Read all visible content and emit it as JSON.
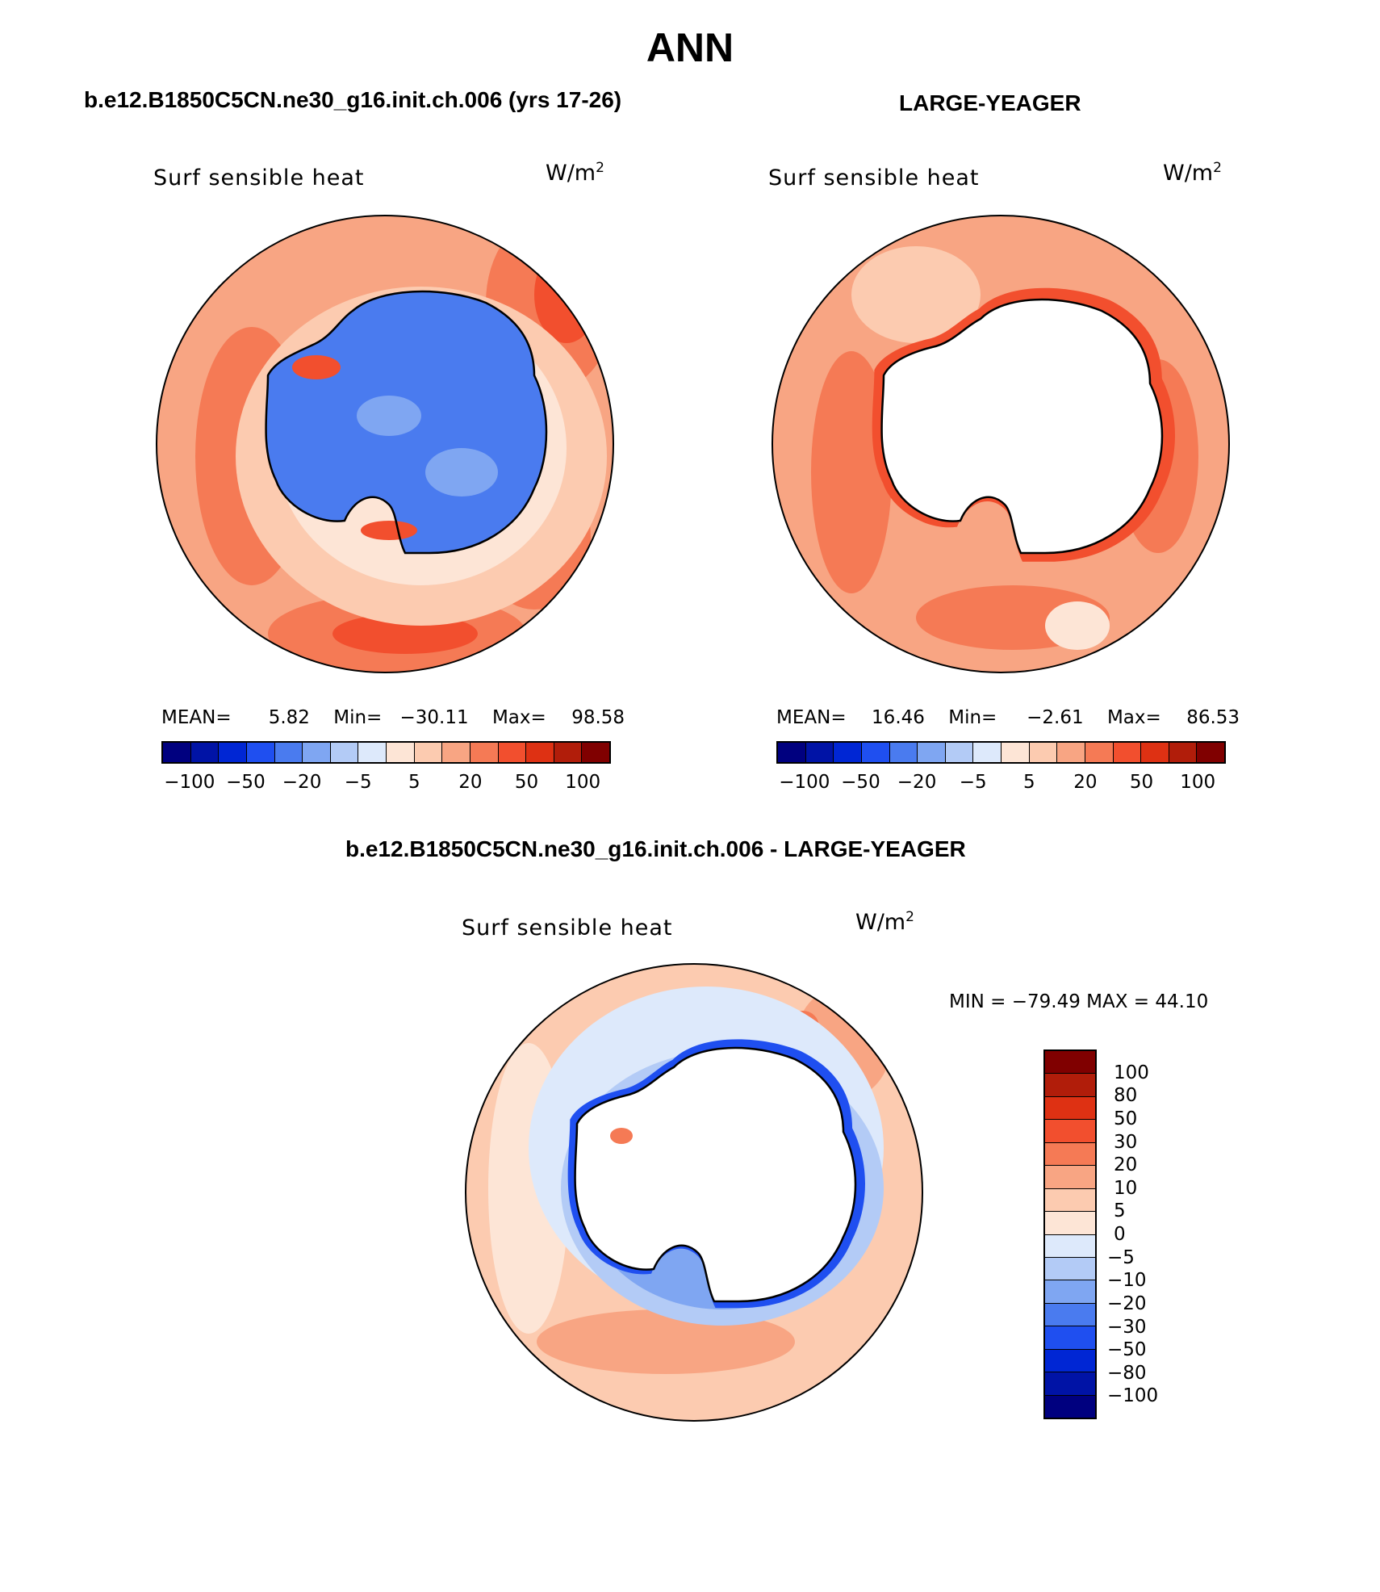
{
  "title": "ANN",
  "panels": [
    {
      "subtitle": "b.e12.B1850C5CN.ne30_g16.init.ch.006 (yrs 17-26)",
      "label": "Surf  sensible  heat",
      "units": "W/m",
      "units_exp": "2",
      "stats": {
        "mean_label": "MEAN=",
        "mean": "5.82",
        "min_label": "Min=",
        "min": "−30.11",
        "max_label": "Max=",
        "max": "98.58"
      },
      "land": "blue"
    },
    {
      "subtitle": "LARGE-YEAGER",
      "label": "Surf  sensible  heat",
      "units": "W/m",
      "units_exp": "2",
      "stats": {
        "mean_label": "MEAN=",
        "mean": "16.46",
        "min_label": "Min=",
        "min": "−2.61",
        "max_label": "Max=",
        "max": "86.53"
      },
      "land": "none"
    },
    {
      "subtitle": "b.e12.B1850C5CN.ne30_g16.init.ch.006 - LARGE-YEAGER",
      "label": "Surf  sensible  heat",
      "units": "W/m",
      "units_exp": "2",
      "stats": {
        "text": "MIN = −79.49  MAX =   44.10"
      },
      "land": "none"
    }
  ],
  "colorbar_h": {
    "colors": [
      "#00007f",
      "#0013a6",
      "#0026d4",
      "#1f4ff0",
      "#4a7bef",
      "#7fa6f2",
      "#b3cbf6",
      "#dde9fb",
      "#fde5d6",
      "#fccbb0",
      "#f8a583",
      "#f57a55",
      "#f24f2e",
      "#de3113",
      "#b11d0a",
      "#800000"
    ],
    "ticks": [
      "−100",
      "−50",
      "−20",
      "−5",
      "5",
      "20",
      "50",
      "100"
    ]
  },
  "colorbar_v": {
    "colors": [
      "#800000",
      "#b11d0a",
      "#de3113",
      "#f24f2e",
      "#f57a55",
      "#f8a583",
      "#fccbb0",
      "#fde5d6",
      "#dde9fb",
      "#b3cbf6",
      "#7fa6f2",
      "#4a7bef",
      "#1f4ff0",
      "#0026d4",
      "#0013a6",
      "#00007f"
    ],
    "ticks": [
      "100",
      "80",
      "50",
      "30",
      "20",
      "10",
      "5",
      "0",
      "−5",
      "−10",
      "−20",
      "−30",
      "−50",
      "−80",
      "−100"
    ]
  }
}
